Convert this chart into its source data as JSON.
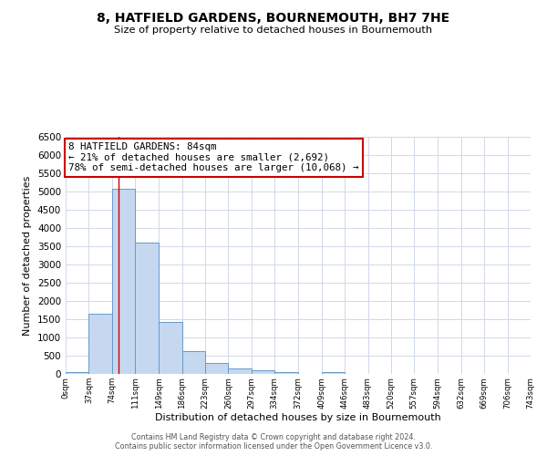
{
  "title": "8, HATFIELD GARDENS, BOURNEMOUTH, BH7 7HE",
  "subtitle": "Size of property relative to detached houses in Bournemouth",
  "bar_edges": [
    0,
    37,
    74,
    111,
    149,
    186,
    223,
    260,
    297,
    334,
    372,
    409,
    446,
    483,
    520,
    557,
    594,
    632,
    669,
    706,
    743
  ],
  "bar_heights": [
    50,
    1650,
    5080,
    3600,
    1430,
    620,
    305,
    155,
    100,
    50,
    0,
    60,
    0,
    0,
    0,
    0,
    0,
    0,
    0,
    0
  ],
  "bar_color": "#c5d8f0",
  "bar_edgecolor": "#6699cc",
  "property_line_x": 84,
  "property_line_color": "#cc0000",
  "xlabel": "Distribution of detached houses by size in Bournemouth",
  "ylabel": "Number of detached properties",
  "ylim": [
    0,
    6500
  ],
  "yticks": [
    0,
    500,
    1000,
    1500,
    2000,
    2500,
    3000,
    3500,
    4000,
    4500,
    5000,
    5500,
    6000,
    6500
  ],
  "xtick_labels": [
    "0sqm",
    "37sqm",
    "74sqm",
    "111sqm",
    "149sqm",
    "186sqm",
    "223sqm",
    "260sqm",
    "297sqm",
    "334sqm",
    "372sqm",
    "409sqm",
    "446sqm",
    "483sqm",
    "520sqm",
    "557sqm",
    "594sqm",
    "632sqm",
    "669sqm",
    "706sqm",
    "743sqm"
  ],
  "annotation_title": "8 HATFIELD GARDENS: 84sqm",
  "annotation_line1": "← 21% of detached houses are smaller (2,692)",
  "annotation_line2": "78% of semi-detached houses are larger (10,068) →",
  "annotation_box_facecolor": "#ffffff",
  "annotation_box_edgecolor": "#cc0000",
  "footer1": "Contains HM Land Registry data © Crown copyright and database right 2024.",
  "footer2": "Contains public sector information licensed under the Open Government Licence v3.0.",
  "background_color": "#ffffff",
  "grid_color": "#d0d8e8"
}
